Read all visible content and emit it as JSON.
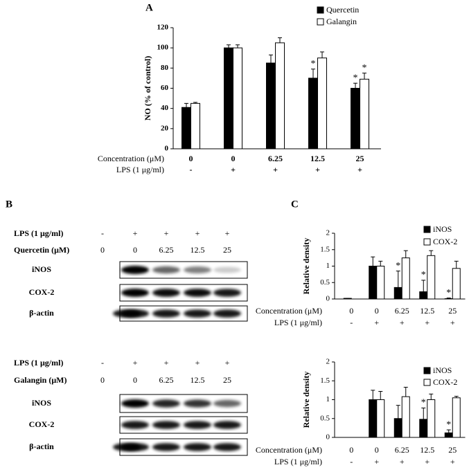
{
  "panels": [
    "A",
    "B",
    "C"
  ],
  "chart_data": [
    {
      "type": "bar",
      "ylabel": "NO (% of control)",
      "ylim": [
        0,
        120
      ],
      "yticks": [
        0,
        20,
        40,
        60,
        80,
        100,
        120
      ],
      "row_labels": [
        "Concentration (μM)",
        "LPS (1 μg/ml)"
      ],
      "categories": [
        "0",
        "0",
        "6.25",
        "12.5",
        "25"
      ],
      "lps": [
        "-",
        "+",
        "+",
        "+",
        "+"
      ],
      "legend_position": "upper right",
      "series": [
        {
          "name": "Quercetin",
          "color": "#000000",
          "values": [
            41,
            100,
            85,
            70,
            60
          ],
          "errors": [
            4,
            3,
            8,
            9,
            5
          ],
          "significance": [
            null,
            null,
            null,
            "*",
            "*"
          ]
        },
        {
          "name": "Galangin",
          "color": "#ffffff",
          "values": [
            45,
            100,
            105,
            90,
            69
          ],
          "errors": [
            1,
            3,
            5,
            6,
            6
          ],
          "significance": [
            null,
            null,
            null,
            null,
            "*"
          ]
        }
      ]
    },
    {
      "type": "bar",
      "ylabel": "Relative density",
      "ylim": [
        0,
        2
      ],
      "yticks": [
        0,
        0.5,
        1,
        1.5,
        2
      ],
      "row_labels": [
        "Concentration (μM)",
        "LPS (1 μg/ml)"
      ],
      "categories": [
        "0",
        "0",
        "6.25",
        "12.5",
        "25"
      ],
      "lps": [
        "-",
        "+",
        "+",
        "+",
        "+"
      ],
      "legend_position": "upper right",
      "series": [
        {
          "name": "iNOS",
          "color": "#000000",
          "values": [
            0.02,
            1.0,
            0.35,
            0.22,
            0.01
          ],
          "errors": [
            0,
            0.28,
            0.5,
            0.35,
            0.02
          ],
          "significance": [
            null,
            null,
            "*",
            "*",
            "*"
          ]
        },
        {
          "name": "COX-2",
          "color": "#ffffff",
          "values": [
            0,
            1.0,
            1.25,
            1.32,
            0.93
          ],
          "errors": [
            0,
            0.15,
            0.22,
            0.15,
            0.22
          ],
          "significance": [
            null,
            null,
            null,
            null,
            null
          ]
        }
      ]
    },
    {
      "type": "bar",
      "ylabel": "Relative density",
      "ylim": [
        0,
        2
      ],
      "yticks": [
        0,
        0.5,
        1,
        1.5,
        2
      ],
      "row_labels": [
        "Concentration (μM)",
        "LPS (1 μg/ml)"
      ],
      "categories": [
        "0",
        "0",
        "6.25",
        "12.5",
        "25"
      ],
      "lps": [
        "-",
        "+",
        "+",
        "+",
        "+"
      ],
      "legend_position": "upper right",
      "series": [
        {
          "name": "iNOS",
          "color": "#000000",
          "values": [
            0,
            1.0,
            0.5,
            0.48,
            0.12
          ],
          "errors": [
            0,
            0.25,
            0.35,
            0.3,
            0.08
          ],
          "significance": [
            null,
            null,
            null,
            "*",
            "*"
          ]
        },
        {
          "name": "COX-2",
          "color": "#ffffff",
          "values": [
            0,
            1.0,
            1.08,
            1.0,
            1.05
          ],
          "errors": [
            0,
            0.22,
            0.25,
            0.15,
            0.04
          ],
          "significance": [
            null,
            null,
            null,
            null,
            null
          ]
        }
      ]
    }
  ],
  "blots": [
    {
      "lps_label": "LPS (1 μg/ml)",
      "lps": [
        "-",
        "+",
        "+",
        "+",
        "+"
      ],
      "treatment_label": "Quercetin (μM)",
      "doses": [
        "0",
        "0",
        "6.25",
        "12.5",
        "25"
      ],
      "rows": [
        "iNOS",
        "COX-2",
        "β-actin"
      ]
    },
    {
      "lps_label": "LPS (1 μg/ml)",
      "lps": [
        "-",
        "+",
        "+",
        "+",
        "+"
      ],
      "treatment_label": "Galangin (μM)",
      "doses": [
        "0",
        "0",
        "6.25",
        "12.5",
        "25"
      ],
      "rows": [
        "iNOS",
        "COX-2",
        "β-actin"
      ]
    }
  ]
}
